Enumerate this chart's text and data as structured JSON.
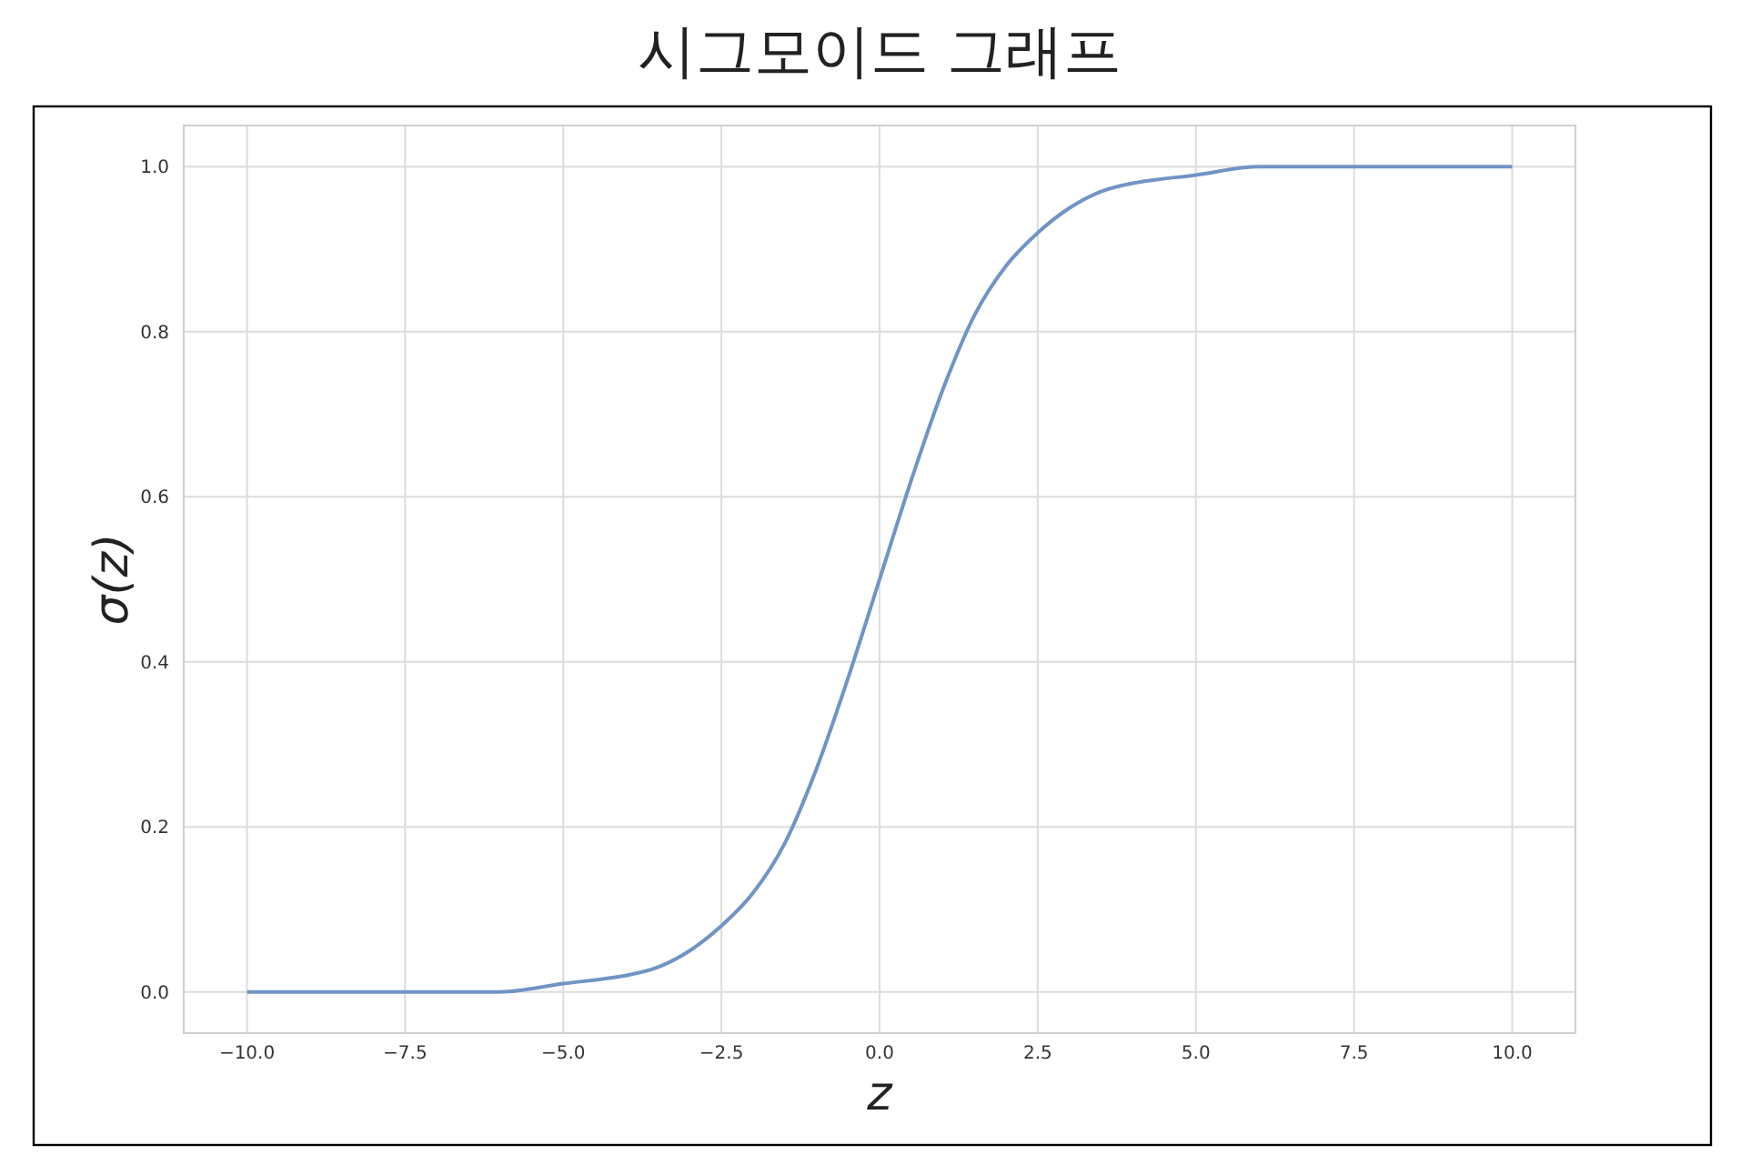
{
  "chart_data": {
    "type": "line",
    "title": "시그모이드 그래프",
    "xlabel": "z",
    "ylabel": "σ(z)",
    "x": [
      -10,
      -8,
      -6,
      -5,
      -4,
      -3.5,
      -3,
      -2.5,
      -2,
      -1.5,
      -1,
      -0.5,
      0,
      0.5,
      1,
      1.5,
      2,
      2.5,
      3,
      3.5,
      4,
      5,
      6,
      8,
      10
    ],
    "series": [
      {
        "color": "#7094c4",
        "values": [
          0.0,
          0.0,
          0.0,
          0.01,
          0.02,
          0.03,
          0.05,
          0.08,
          0.12,
          0.18,
          0.27,
          0.38,
          0.5,
          0.62,
          0.73,
          0.82,
          0.88,
          0.92,
          0.95,
          0.97,
          0.98,
          0.99,
          1.0,
          1.0,
          1.0
        ]
      }
    ],
    "xlim": [
      -11,
      11
    ],
    "ylim": [
      -0.05,
      1.05
    ],
    "xticks": [
      {
        "value": -10,
        "label": "−10.0"
      },
      {
        "value": -7.5,
        "label": "−7.5"
      },
      {
        "value": -5,
        "label": "−5.0"
      },
      {
        "value": -2.5,
        "label": "−2.5"
      },
      {
        "value": 0,
        "label": "0.0"
      },
      {
        "value": 2.5,
        "label": "2.5"
      },
      {
        "value": 5,
        "label": "5.0"
      },
      {
        "value": 7.5,
        "label": "7.5"
      },
      {
        "value": 10,
        "label": "10.0"
      }
    ],
    "yticks": [
      {
        "value": 0,
        "label": "0.0"
      },
      {
        "value": 0.2,
        "label": "0.2"
      },
      {
        "value": 0.4,
        "label": "0.4"
      },
      {
        "value": 0.6,
        "label": "0.6"
      },
      {
        "value": 0.8,
        "label": "0.8"
      },
      {
        "value": 1,
        "label": "1.0"
      }
    ],
    "grid": true
  }
}
